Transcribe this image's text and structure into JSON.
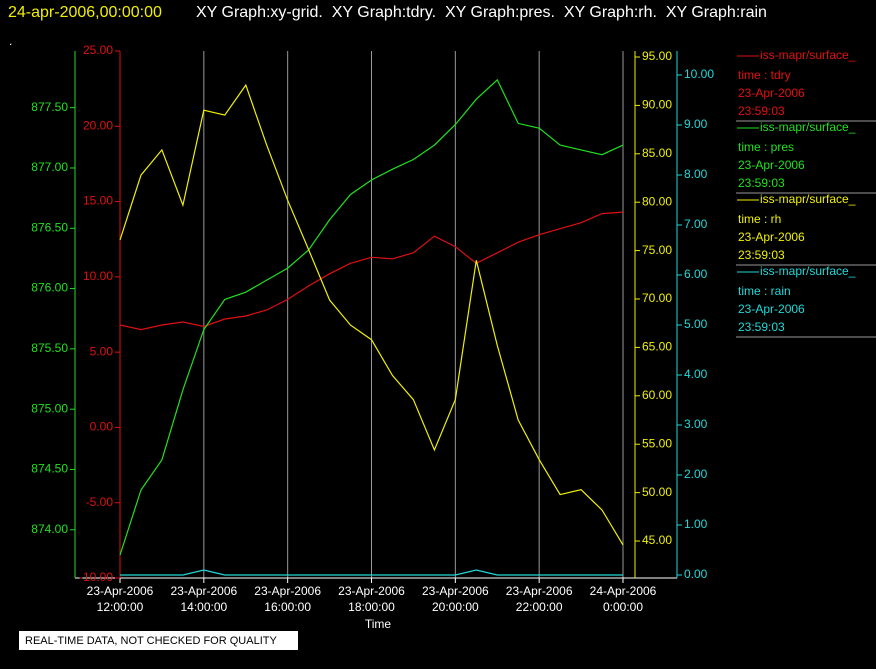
{
  "chart_data": {
    "type": "line",
    "title_time": "24-apr-2006,00:00:00",
    "title": "XY Graph:xy-grid.  XY Graph:tdry.  XY Graph:pres.  XY Graph:rh.  XY Graph:rain",
    "marker": ".",
    "xlabel": "Time",
    "footer": "REAL-TIME DATA, NOT CHECKED FOR QUALITY",
    "grid": true,
    "xlim": [
      12,
      24
    ],
    "xticks": [
      {
        "value": 12,
        "label": [
          "23-Apr-2006",
          "12:00:00"
        ]
      },
      {
        "value": 14,
        "label": [
          "23-Apr-2006",
          "14:00:00"
        ]
      },
      {
        "value": 16,
        "label": [
          "23-Apr-2006",
          "16:00:00"
        ]
      },
      {
        "value": 18,
        "label": [
          "23-Apr-2006",
          "18:00:00"
        ]
      },
      {
        "value": 20,
        "label": [
          "23-Apr-2006",
          "20:00:00"
        ]
      },
      {
        "value": 22,
        "label": [
          "23-Apr-2006",
          "22:00:00"
        ]
      },
      {
        "value": 24,
        "label": [
          "24-Apr-2006",
          "0:00:00"
        ]
      }
    ],
    "x": [
      12,
      12.5,
      13,
      13.5,
      14,
      14.5,
      15,
      15.5,
      16,
      16.5,
      17,
      17.5,
      18,
      18.5,
      19,
      19.5,
      20,
      20.5,
      21,
      21.5,
      22,
      22.5,
      23,
      23.5,
      24
    ],
    "series": [
      {
        "name": "iss-mapr/surface_",
        "label": "time : tdry",
        "date": "23-Apr-2006",
        "time": "23:59:03",
        "color": "#e01010",
        "ylim": [
          -10,
          25
        ],
        "yticks": [
          {
            "value": 25,
            "label": "25.00"
          },
          {
            "value": 20,
            "label": "20.00"
          },
          {
            "value": 15,
            "label": "15.00"
          },
          {
            "value": 10,
            "label": "10.00"
          },
          {
            "value": 5,
            "label": "5.00"
          },
          {
            "value": 0,
            "label": "0.00"
          },
          {
            "value": -5,
            "label": "-5.00"
          },
          {
            "value": -10,
            "label": "-10.00"
          }
        ],
        "values": [
          6.8,
          6.5,
          6.8,
          7.0,
          6.7,
          7.2,
          7.4,
          7.8,
          8.5,
          9.4,
          10.2,
          10.9,
          11.3,
          11.2,
          11.6,
          12.7,
          12.0,
          10.9,
          11.6,
          12.3,
          12.8,
          13.2,
          13.6,
          14.2,
          14.3
        ]
      },
      {
        "name": "iss-mapr/surface_",
        "label": "time : pres",
        "date": "23-Apr-2006",
        "time": "23:59:03",
        "color": "#20e020",
        "ylim": [
          873.6,
          877.97
        ],
        "yticks": [
          {
            "value": 874,
            "label": "874.00"
          },
          {
            "value": 874.5,
            "label": "874.50"
          },
          {
            "value": 875,
            "label": "875.00"
          },
          {
            "value": 875.5,
            "label": "875.50"
          },
          {
            "value": 876,
            "label": "876.00"
          },
          {
            "value": 876.5,
            "label": "876.50"
          },
          {
            "value": 877,
            "label": "877.00"
          },
          {
            "value": 877.5,
            "label": "877.50"
          }
        ],
        "values": [
          873.79,
          874.33,
          874.58,
          875.16,
          875.66,
          875.91,
          875.97,
          876.07,
          876.17,
          876.32,
          876.57,
          876.78,
          876.9,
          876.99,
          877.07,
          877.19,
          877.36,
          877.57,
          877.73,
          877.37,
          877.33,
          877.19,
          877.15,
          877.11,
          877.19
        ]
      },
      {
        "name": "iss-mapr/surface_",
        "label": "time : rh",
        "date": "23-Apr-2006",
        "time": "23:59:03",
        "color": "#f0f000",
        "ylim": [
          41.18,
          95.62
        ],
        "yticks": [
          {
            "value": 45,
            "label": "45.00"
          },
          {
            "value": 50,
            "label": "50.00"
          },
          {
            "value": 55,
            "label": "55.00"
          },
          {
            "value": 60,
            "label": "60.00"
          },
          {
            "value": 65,
            "label": "65.00"
          },
          {
            "value": 70,
            "label": "70.00"
          },
          {
            "value": 75,
            "label": "75.00"
          },
          {
            "value": 80,
            "label": "80.00"
          },
          {
            "value": 85,
            "label": "85.00"
          },
          {
            "value": 90,
            "label": "90.00"
          },
          {
            "value": 95,
            "label": "95.00"
          }
        ],
        "values": [
          76.1,
          82.8,
          85.4,
          79.7,
          89.5,
          89.0,
          92.1,
          85.9,
          80.2,
          75.1,
          69.9,
          67.3,
          65.8,
          62.1,
          59.6,
          54.4,
          59.6,
          74.0,
          65.2,
          57.5,
          53.4,
          49.8,
          50.3,
          48.2,
          44.6
        ]
      },
      {
        "name": "iss-mapr/surface_",
        "label": "time : rain",
        "date": "23-Apr-2006",
        "time": "23:59:03",
        "color": "#20d8d8",
        "ylim": [
          -0.06,
          10.48
        ],
        "yticks": [
          {
            "value": 0,
            "label": "0.00"
          },
          {
            "value": 1,
            "label": "1.00"
          },
          {
            "value": 2,
            "label": "2.00"
          },
          {
            "value": 3,
            "label": "3.00"
          },
          {
            "value": 4,
            "label": "4.00"
          },
          {
            "value": 5,
            "label": "5.00"
          },
          {
            "value": 6,
            "label": "6.00"
          },
          {
            "value": 7,
            "label": "7.00"
          },
          {
            "value": 8,
            "label": "8.00"
          },
          {
            "value": 9,
            "label": "9.00"
          },
          {
            "value": 10,
            "label": "10.00"
          }
        ],
        "values": [
          0,
          0,
          0,
          0,
          0.1,
          0,
          0,
          0,
          0,
          0,
          0,
          0,
          0,
          0,
          0,
          0,
          0,
          0.1,
          0,
          0,
          0,
          0,
          0,
          0,
          0
        ]
      }
    ]
  }
}
